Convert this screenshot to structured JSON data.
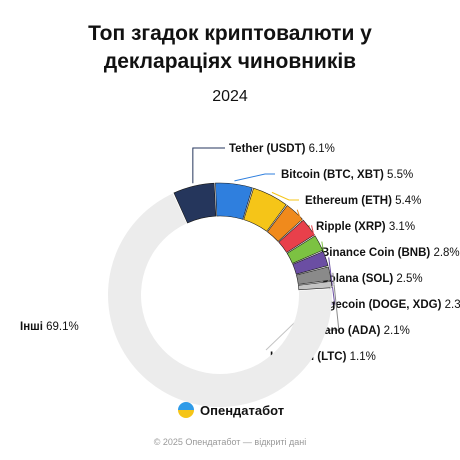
{
  "chart_data": {
    "type": "pie",
    "title": "Топ згадок криптовалюти у деклараціях чиновників",
    "title_lines": [
      "Топ згадок криптовалюти у",
      "деклараціях чиновників"
    ],
    "subtitle": "2024",
    "unit": "%",
    "slices": [
      {
        "label": "Tether (USDT)",
        "value": 6.1,
        "color": "#25365c"
      },
      {
        "label": "Bitcoin (BTC, XBT)",
        "value": 5.5,
        "color": "#2f7fde"
      },
      {
        "label": "Ethereum (ETH)",
        "value": 5.4,
        "color": "#f5c518"
      },
      {
        "label": "Ripple (XRP)",
        "value": 3.1,
        "color": "#f08a1c"
      },
      {
        "label": "Binance Coin (BNB)",
        "value": 2.8,
        "color": "#e8404b"
      },
      {
        "label": "Solana (SOL)",
        "value": 2.5,
        "color": "#7cc242"
      },
      {
        "label": "Dogecoin (DOGE, XDG)",
        "value": 2.3,
        "color": "#6b4ea3"
      },
      {
        "label": "Cardano (ADA)",
        "value": 2.1,
        "color": "#8a8a8a"
      },
      {
        "label": "Litecoin (LTC)",
        "value": 1.1,
        "color": "#c4c4c4"
      },
      {
        "label": "Інші",
        "value": 69.1,
        "color": "#ececec"
      }
    ]
  },
  "brand": {
    "name": "Опендатабот"
  },
  "footer": {
    "text": "© 2025 Опендатабот — відкриті дані"
  }
}
